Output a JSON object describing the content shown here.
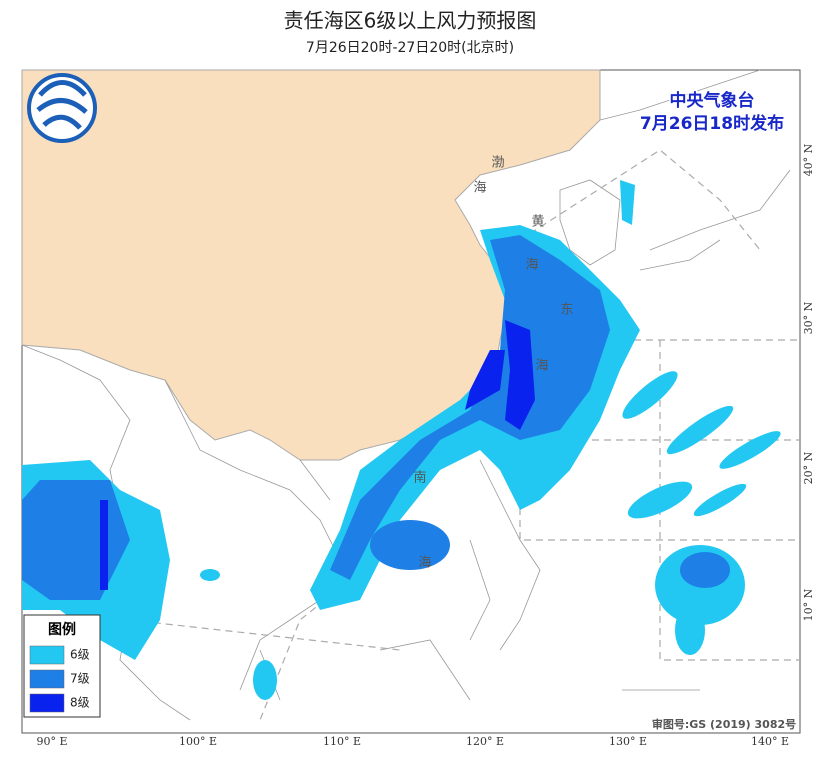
{
  "header": {
    "title": "责任海区6级以上风力预报图",
    "subtitle": "7月26日20时-27日20时(北京时)"
  },
  "issuer": {
    "name": "中央气象台",
    "time": "7月26日18时发布"
  },
  "sea_labels": [
    "渤",
    "海",
    "黄",
    "海",
    "东",
    "海",
    "南",
    "海"
  ],
  "lon_labels": [
    "90° E",
    "100° E",
    "110° E",
    "120° E",
    "130° E",
    "140° E"
  ],
  "lat_labels": [
    "40° N",
    "30° N",
    "20° N",
    "10° N"
  ],
  "legend": {
    "title": "图例",
    "items": [
      {
        "label": "6级",
        "color": "#22c8f2"
      },
      {
        "label": "7级",
        "color": "#1e7fe6"
      },
      {
        "label": "8级",
        "color": "#0a22ee"
      }
    ]
  },
  "map_approval": "审图号:GS (2019) 3082号"
}
